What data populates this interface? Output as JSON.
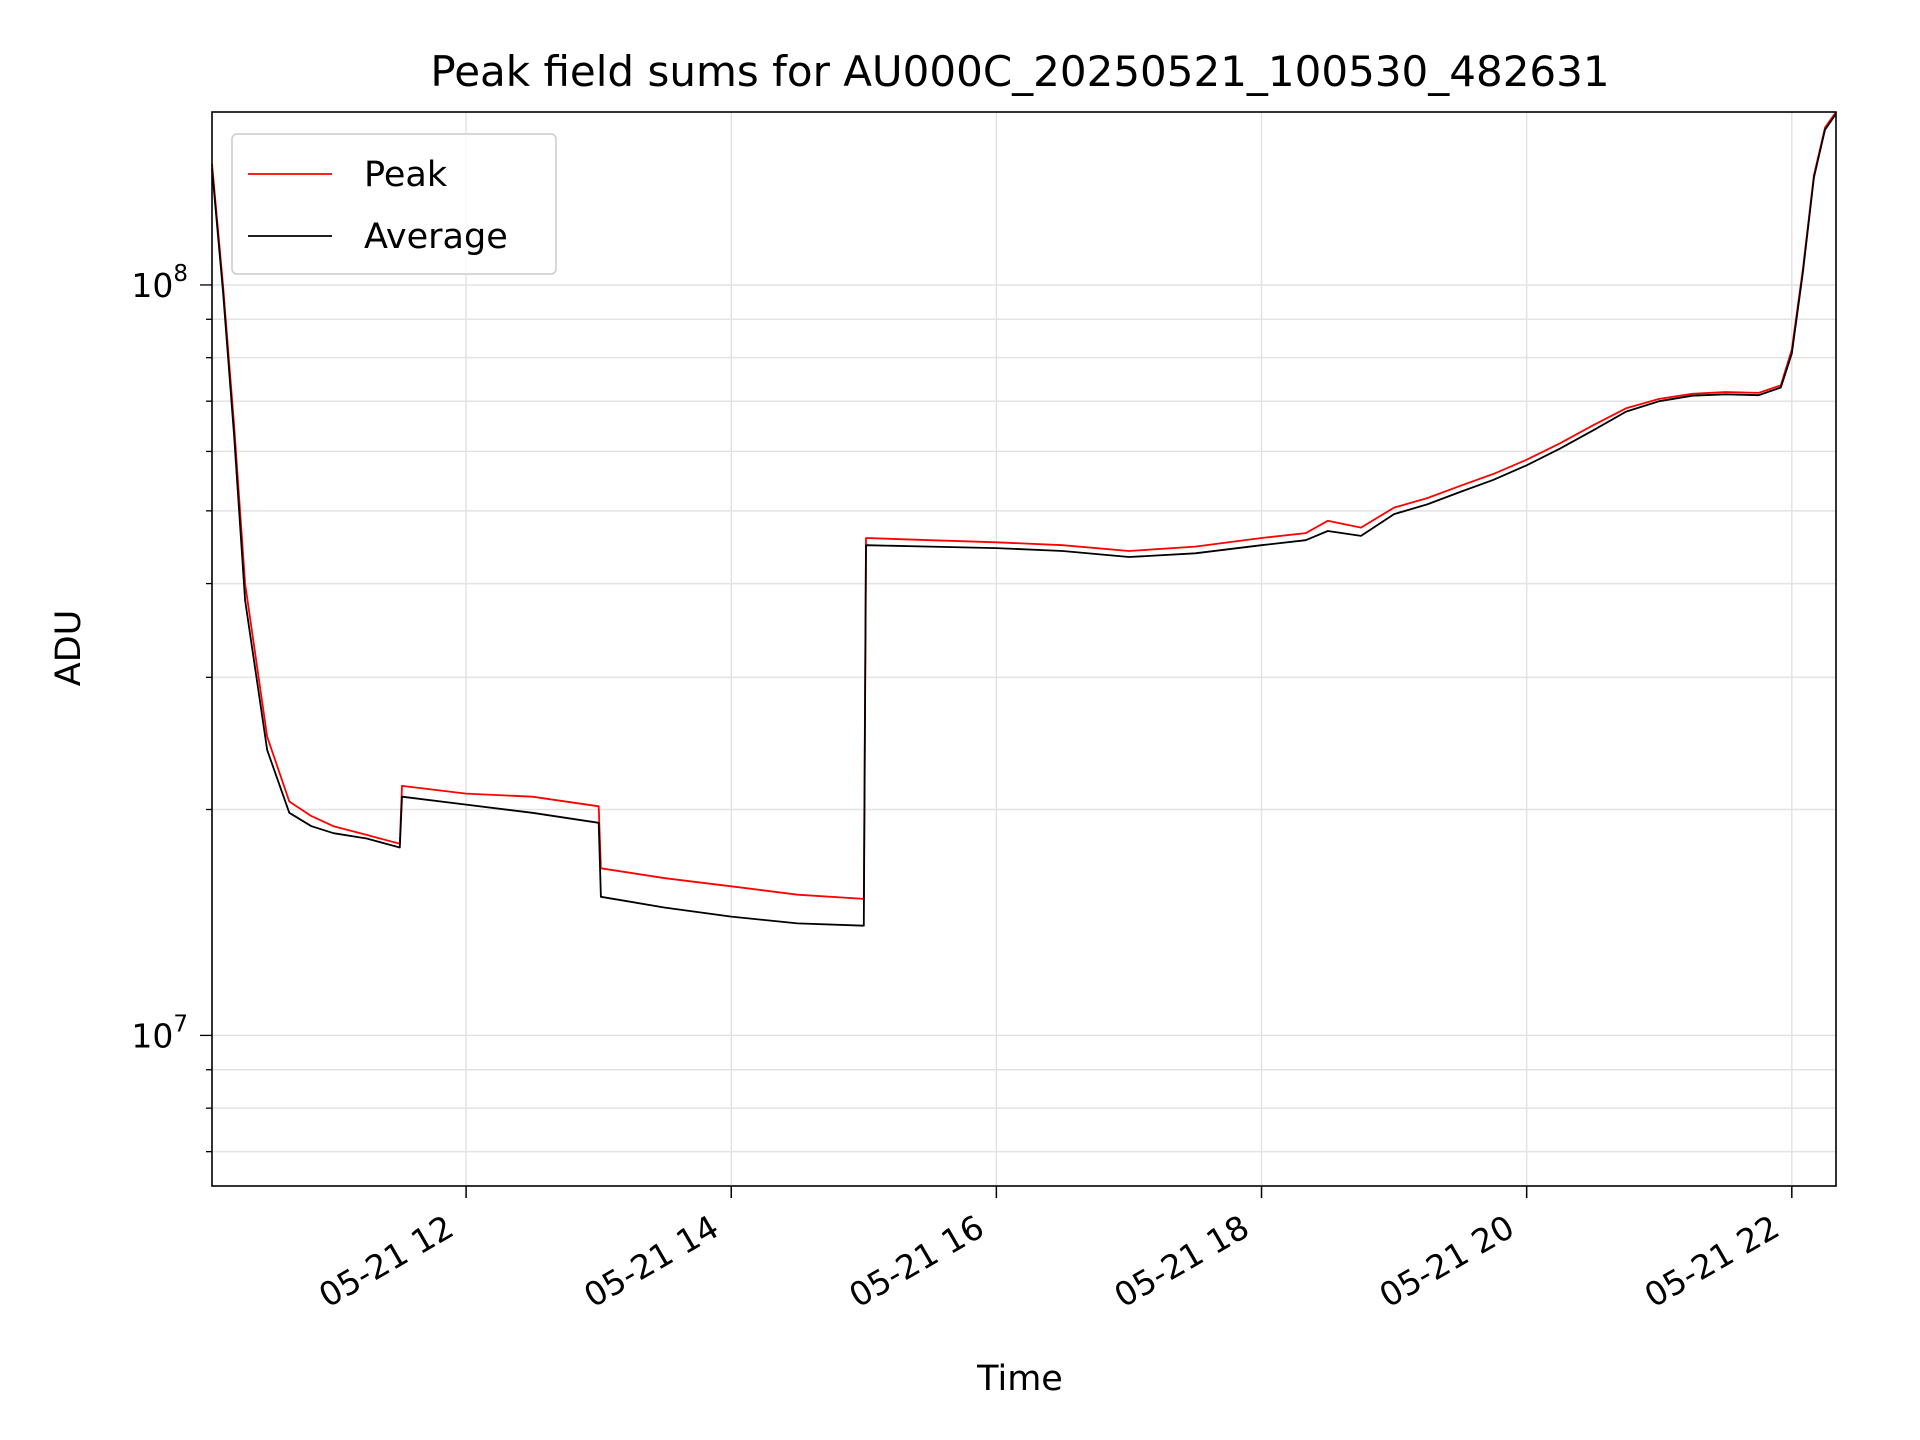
{
  "chart_data": {
    "type": "line",
    "title": "Peak field sums for AU000C_20250521_100530_482631",
    "xlabel": "Time",
    "ylabel": "ADU",
    "x_unit": "datetime",
    "xlim": [
      "2025-05-21T10:05",
      "2025-05-21T22:20"
    ],
    "ylim": [
      6300000,
      170000000
    ],
    "y_scale": "log",
    "grid": true,
    "legend_position": "top-left",
    "x_ticks": [
      {
        "value": "2025-05-21T12:00",
        "label": "05-21 12"
      },
      {
        "value": "2025-05-21T14:00",
        "label": "05-21 14"
      },
      {
        "value": "2025-05-21T16:00",
        "label": "05-21 16"
      },
      {
        "value": "2025-05-21T18:00",
        "label": "05-21 18"
      },
      {
        "value": "2025-05-21T20:00",
        "label": "05-21 20"
      },
      {
        "value": "2025-05-21T22:00",
        "label": "05-21 22"
      }
    ],
    "y_ticks": [
      {
        "value": 10000000,
        "base": "10",
        "exp": "7"
      },
      {
        "value": 100000000,
        "base": "10",
        "exp": "8"
      }
    ],
    "series": [
      {
        "name": "Peak",
        "color": "#ff0000",
        "x": [
          "2025-05-21T10:05",
          "2025-05-21T10:10",
          "2025-05-21T10:15",
          "2025-05-21T10:20",
          "2025-05-21T10:30",
          "2025-05-21T10:40",
          "2025-05-21T10:50",
          "2025-05-21T11:00",
          "2025-05-21T11:15",
          "2025-05-21T11:30",
          "2025-05-21T11:31",
          "2025-05-21T12:00",
          "2025-05-21T12:30",
          "2025-05-21T13:00",
          "2025-05-21T13:01",
          "2025-05-21T13:30",
          "2025-05-21T14:00",
          "2025-05-21T14:30",
          "2025-05-21T15:00",
          "2025-05-21T15:01",
          "2025-05-21T15:30",
          "2025-05-21T16:00",
          "2025-05-21T16:30",
          "2025-05-21T17:00",
          "2025-05-21T17:30",
          "2025-05-21T18:00",
          "2025-05-21T18:20",
          "2025-05-21T18:30",
          "2025-05-21T18:45",
          "2025-05-21T19:00",
          "2025-05-21T19:15",
          "2025-05-21T19:30",
          "2025-05-21T19:45",
          "2025-05-21T20:00",
          "2025-05-21T20:15",
          "2025-05-21T20:30",
          "2025-05-21T20:45",
          "2025-05-21T21:00",
          "2025-05-21T21:15",
          "2025-05-21T21:30",
          "2025-05-21T21:45",
          "2025-05-21T21:55",
          "2025-05-21T22:00",
          "2025-05-21T22:05",
          "2025-05-21T22:10",
          "2025-05-21T22:15",
          "2025-05-21T22:20"
        ],
        "y": [
          145000000,
          100000000,
          65000000,
          40000000,
          25000000,
          20500000,
          19600000,
          19000000,
          18500000,
          18000000,
          21500000,
          21000000,
          20800000,
          20200000,
          16700000,
          16200000,
          15800000,
          15400000,
          15200000,
          46000000,
          45700000,
          45400000,
          45000000,
          44200000,
          44800000,
          46000000,
          46700000,
          48500000,
          47500000,
          50500000,
          52000000,
          54000000,
          56000000,
          58500000,
          61500000,
          65000000,
          68500000,
          70500000,
          71600000,
          72000000,
          71800000,
          73500000,
          82000000,
          105000000,
          140000000,
          162000000,
          170000000
        ]
      },
      {
        "name": "Average",
        "color": "#000000",
        "x": [
          "2025-05-21T10:05",
          "2025-05-21T10:10",
          "2025-05-21T10:15",
          "2025-05-21T10:20",
          "2025-05-21T10:30",
          "2025-05-21T10:40",
          "2025-05-21T10:50",
          "2025-05-21T11:00",
          "2025-05-21T11:15",
          "2025-05-21T11:30",
          "2025-05-21T11:31",
          "2025-05-21T12:00",
          "2025-05-21T12:30",
          "2025-05-21T13:00",
          "2025-05-21T13:01",
          "2025-05-21T13:30",
          "2025-05-21T14:00",
          "2025-05-21T14:30",
          "2025-05-21T15:00",
          "2025-05-21T15:01",
          "2025-05-21T15:30",
          "2025-05-21T16:00",
          "2025-05-21T16:30",
          "2025-05-21T17:00",
          "2025-05-21T17:30",
          "2025-05-21T18:00",
          "2025-05-21T18:20",
          "2025-05-21T18:30",
          "2025-05-21T18:45",
          "2025-05-21T19:00",
          "2025-05-21T19:15",
          "2025-05-21T19:30",
          "2025-05-21T19:45",
          "2025-05-21T20:00",
          "2025-05-21T20:15",
          "2025-05-21T20:30",
          "2025-05-21T20:45",
          "2025-05-21T21:00",
          "2025-05-21T21:15",
          "2025-05-21T21:30",
          "2025-05-21T21:45",
          "2025-05-21T21:55",
          "2025-05-21T22:00",
          "2025-05-21T22:05",
          "2025-05-21T22:10",
          "2025-05-21T22:15",
          "2025-05-21T22:20"
        ],
        "y": [
          143000000,
          98000000,
          63000000,
          38000000,
          24000000,
          19800000,
          19000000,
          18600000,
          18300000,
          17800000,
          20800000,
          20300000,
          19800000,
          19200000,
          15300000,
          14800000,
          14400000,
          14100000,
          14000000,
          45000000,
          44800000,
          44600000,
          44200000,
          43400000,
          43900000,
          45000000,
          45700000,
          47000000,
          46300000,
          49500000,
          51000000,
          53000000,
          55000000,
          57500000,
          60500000,
          64000000,
          67800000,
          70000000,
          71200000,
          71500000,
          71300000,
          73000000,
          81000000,
          104000000,
          139000000,
          161000000,
          169000000
        ]
      }
    ]
  }
}
